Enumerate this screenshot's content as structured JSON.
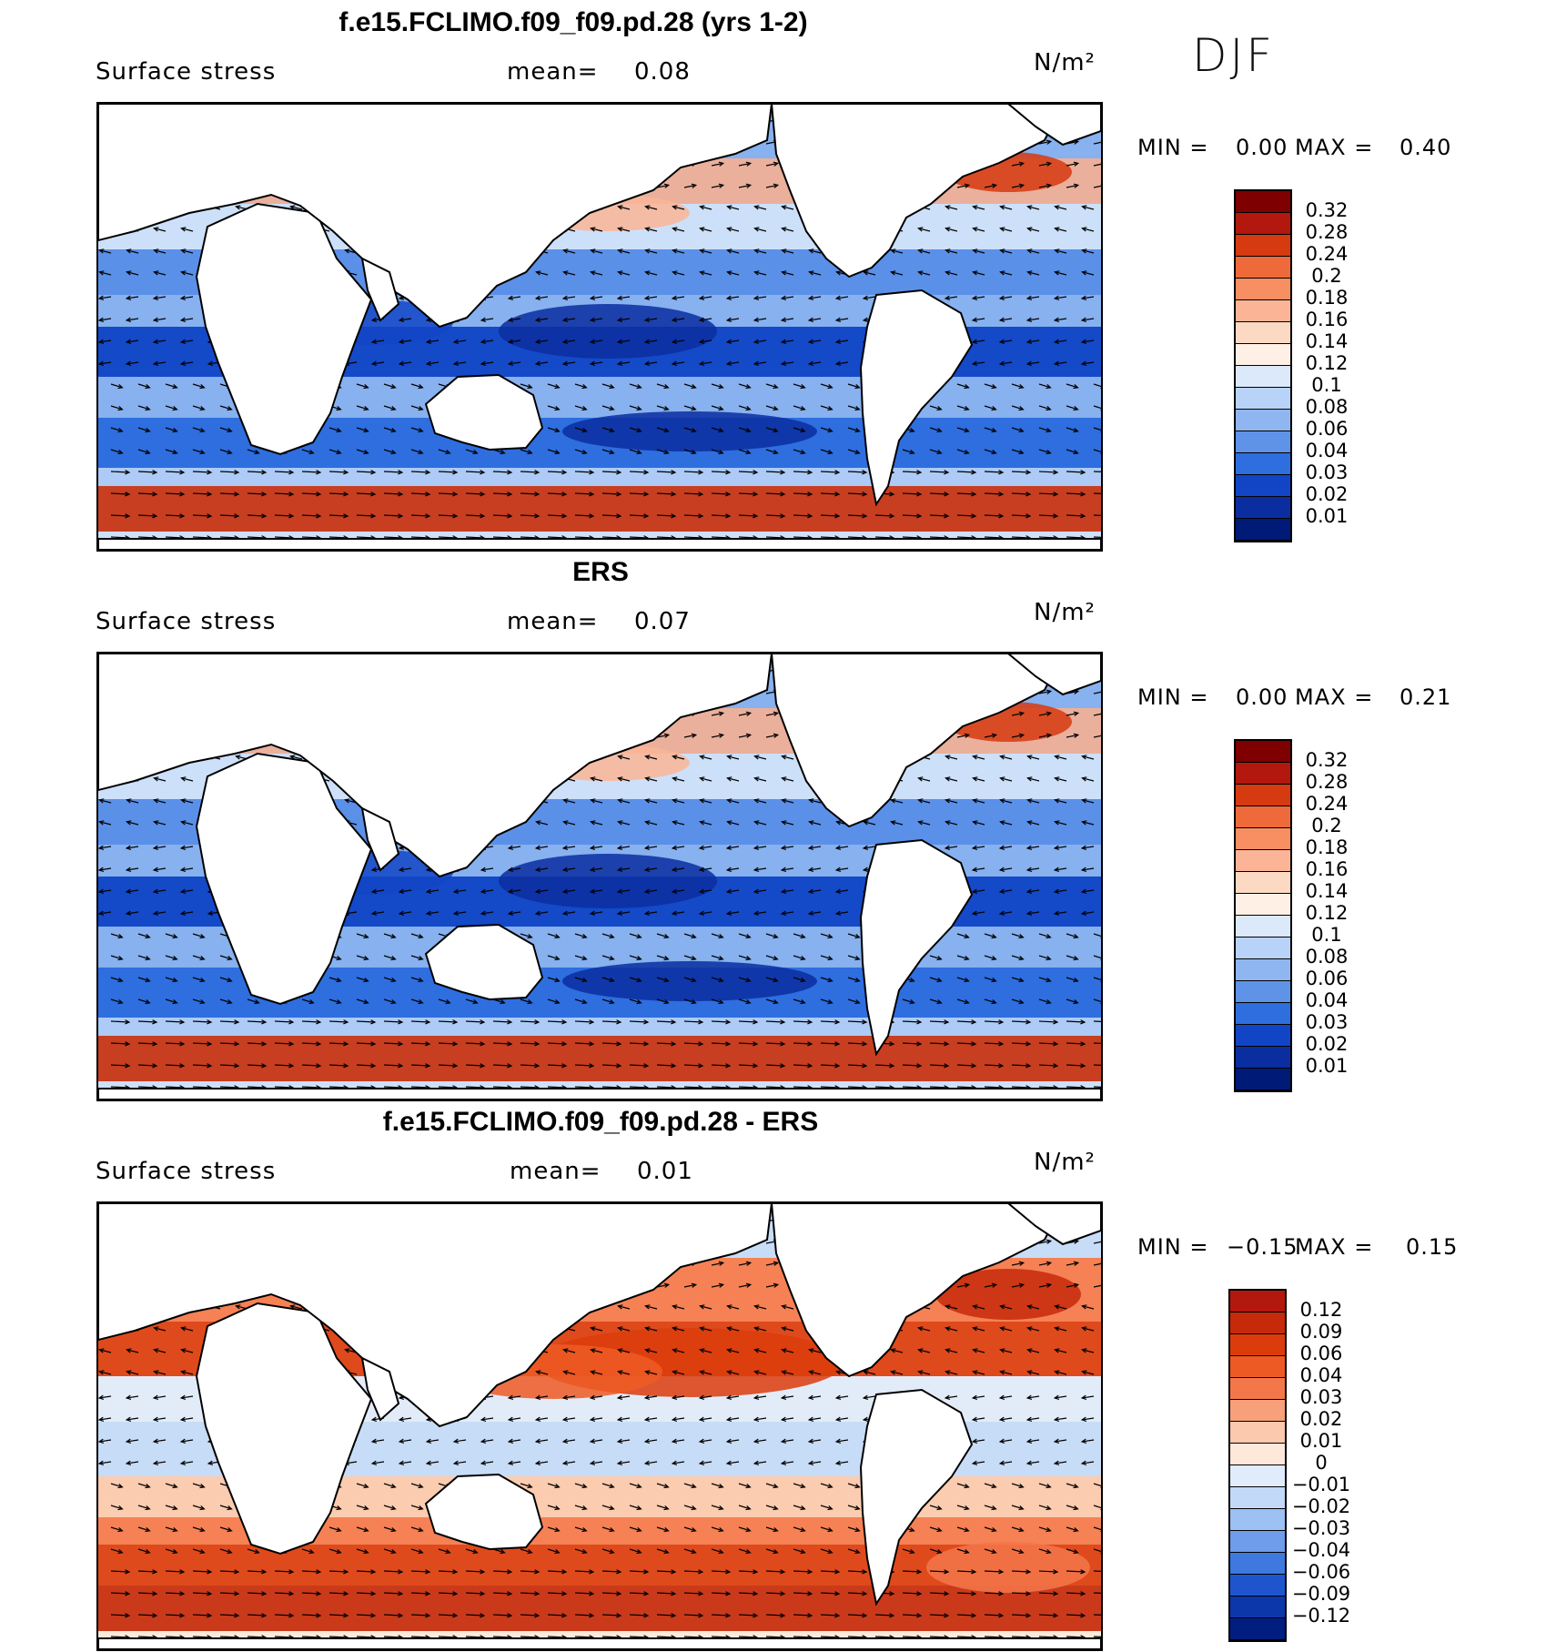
{
  "season": "DJF",
  "chart_data": [
    {
      "type": "contour_map_with_vectors",
      "title": "f.e15.FCLIMO.f09_f09.pd.28 (yrs 1-2)",
      "variable": "Surface stress",
      "mean_label": "mean=",
      "mean": "0.08",
      "units": "N/m²",
      "min_label": "MIN =",
      "min": "0.00",
      "max_label": "MAX =",
      "max": "0.40",
      "colorbar_labels": [
        "0.32",
        "0.28",
        "0.24",
        "0.2",
        "0.18",
        "0.16",
        "0.14",
        "0.12",
        "0.1",
        "0.08",
        "0.06",
        "0.04",
        "0.03",
        "0.02",
        "0.01"
      ],
      "colorbar_colors": [
        "#7f0000",
        "#b2180e",
        "#d63a10",
        "#ef6a3a",
        "#f88f62",
        "#fbb596",
        "#fcd9c3",
        "#fff0e6",
        "#dbe9fb",
        "#b8d3f7",
        "#8fb6f0",
        "#5f93e8",
        "#2f6ede",
        "#1245c6",
        "#0a2ea0",
        "#001a78"
      ]
    },
    {
      "type": "contour_map_with_vectors",
      "title": "ERS",
      "variable": "Surface stress",
      "mean_label": "mean=",
      "mean": "0.07",
      "units": "N/m²",
      "min_label": "MIN =",
      "min": "0.00",
      "max_label": "MAX =",
      "max": "0.21",
      "colorbar_labels": [
        "0.32",
        "0.28",
        "0.24",
        "0.2",
        "0.18",
        "0.16",
        "0.14",
        "0.12",
        "0.1",
        "0.08",
        "0.06",
        "0.04",
        "0.03",
        "0.02",
        "0.01"
      ],
      "colorbar_colors": [
        "#7f0000",
        "#b2180e",
        "#d63a10",
        "#ef6a3a",
        "#f88f62",
        "#fbb596",
        "#fcd9c3",
        "#fff0e6",
        "#dbe9fb",
        "#b8d3f7",
        "#8fb6f0",
        "#5f93e8",
        "#2f6ede",
        "#1245c6",
        "#0a2ea0",
        "#001a78"
      ]
    },
    {
      "type": "contour_map_with_vectors",
      "title": "f.e15.FCLIMO.f09_f09.pd.28 - ERS",
      "variable": "Surface stress",
      "mean_label": "mean=",
      "mean": "0.01",
      "units": "N/m²",
      "min_label": "MIN =",
      "min": "−0.15",
      "max_label": "MAX =",
      "max": "0.15",
      "colorbar_labels": [
        "0.12",
        "0.09",
        "0.06",
        "0.04",
        "0.03",
        "0.02",
        "0.01",
        "0",
        "−0.01",
        "−0.02",
        "−0.03",
        "−0.04",
        "−0.06",
        "−0.09",
        "−0.12"
      ],
      "colorbar_colors": [
        "#b2180e",
        "#c62a0a",
        "#dc3c0c",
        "#ee5a24",
        "#f4774a",
        "#f8a07a",
        "#fbc9ad",
        "#fde8da",
        "#e0ecfb",
        "#c2daf8",
        "#9cc1f2",
        "#6f9ceb",
        "#3f79e0",
        "#1e55cf",
        "#0c37aa",
        "#001e80"
      ]
    }
  ]
}
